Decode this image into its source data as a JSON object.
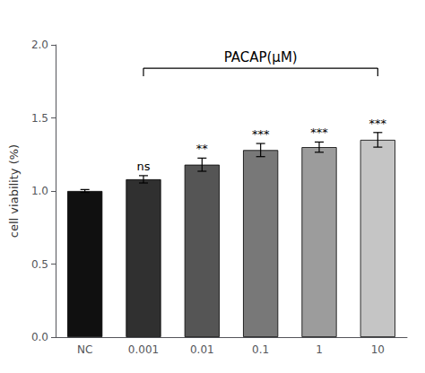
{
  "chart_data": {
    "type": "bar",
    "categories": [
      "NC",
      "0.001",
      "0.01",
      "0.1",
      "1",
      "10"
    ],
    "values": [
      1.0,
      1.08,
      1.18,
      1.28,
      1.3,
      1.35
    ],
    "errors": [
      0.01,
      0.025,
      0.045,
      0.045,
      0.035,
      0.05
    ],
    "colors": [
      "#101010",
      "#303030",
      "#555555",
      "#787878",
      "#9c9c9c",
      "#c5c5c5"
    ],
    "significance": [
      null,
      "ns",
      "**",
      "***",
      "***",
      "***"
    ],
    "ylabel": "cell viability (%)",
    "ylim": [
      0.0,
      2.0
    ],
    "yticks": [
      {
        "value": 0.0,
        "label": "0.0"
      },
      0.5,
      {
        "value": 1.0,
        "label": "1.0"
      },
      1.5,
      {
        "value": 2.0,
        "label": "2.0"
      }
    ],
    "annotations": [
      {
        "text": "PACAP(μM)",
        "from": "0.001",
        "to": "10",
        "y": 1.84
      }
    ],
    "grid": false
  }
}
